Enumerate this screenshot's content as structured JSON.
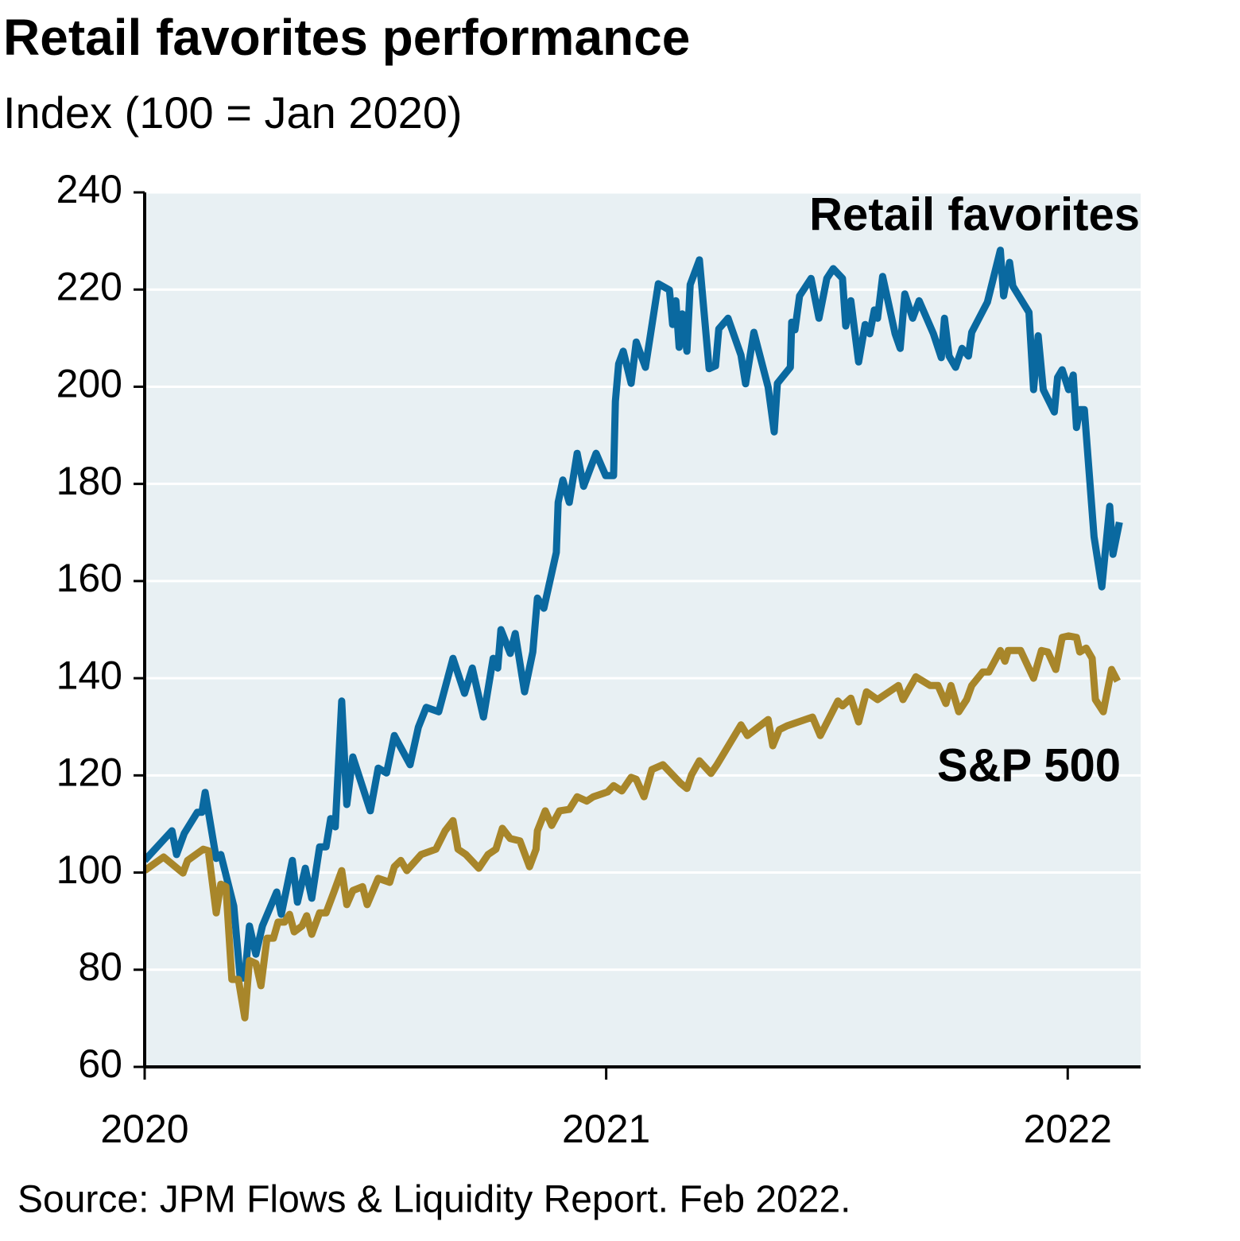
{
  "chart_data": {
    "type": "line",
    "title": "Retail favorites performance",
    "subtitle": "Index (100 = Jan 2020)",
    "source": "Source: JPM Flows & Liquidity Report. Feb 2022.",
    "annotations": [
      "Retail favorites",
      "S&P 500"
    ],
    "xlim": [
      2020,
      2022.158
    ],
    "xticks": [
      2020,
      2021,
      2022
    ],
    "ylim": [
      60,
      240
    ],
    "yticks": [
      60,
      80,
      100,
      120,
      140,
      160,
      180,
      200,
      220,
      240
    ],
    "grid": true,
    "background": "#e8f0f3",
    "series": [
      {
        "name": "Retail favorites",
        "color": "#0a69a0",
        "x": [
          2020.0,
          2020.059,
          2020.069,
          2020.086,
          2020.114,
          2020.124,
          2020.131,
          2020.155,
          2020.165,
          2020.193,
          2020.207,
          2020.217,
          2020.227,
          2020.241,
          2020.255,
          2020.286,
          2020.296,
          2020.32,
          2020.331,
          2020.348,
          2020.362,
          2020.379,
          2020.393,
          2020.403,
          2020.413,
          2020.427,
          2020.438,
          2020.451,
          2020.489,
          2020.506,
          2020.524,
          2020.541,
          2020.575,
          2020.593,
          2020.61,
          2020.637,
          2020.668,
          2020.693,
          2020.71,
          2020.734,
          2020.755,
          2020.765,
          2020.772,
          2020.792,
          2020.803,
          2020.823,
          2020.841,
          2020.851,
          2020.865,
          2020.892,
          2020.896,
          2020.906,
          2020.92,
          2020.937,
          2020.951,
          2020.978,
          2020.999,
          2021.016,
          2021.02,
          2021.027,
          2021.037,
          2021.054,
          2021.065,
          2021.085,
          2021.113,
          2021.137,
          2021.144,
          2021.151,
          2021.158,
          2021.165,
          2021.175,
          2021.182,
          2021.202,
          2021.223,
          2021.237,
          2021.244,
          2021.264,
          2021.292,
          2021.302,
          2021.32,
          2021.351,
          2021.364,
          2021.371,
          2021.399,
          2021.402,
          2021.409,
          2021.419,
          2021.444,
          2021.461,
          2021.478,
          2021.492,
          2021.512,
          2021.519,
          2021.53,
          2021.547,
          2021.561,
          2021.571,
          2021.581,
          2021.588,
          2021.599,
          2021.626,
          2021.637,
          2021.647,
          2021.664,
          2021.678,
          2021.709,
          2021.726,
          2021.733,
          2021.743,
          2021.757,
          2021.771,
          2021.785,
          2021.792,
          2021.826,
          2021.854,
          2021.861,
          2021.874,
          2021.881,
          2021.916,
          2021.926,
          2021.936,
          2021.947,
          2021.971,
          2021.978,
          2021.988,
          2022.002,
          2022.012,
          2022.019,
          2022.026,
          2022.036,
          2022.057,
          2022.074,
          2022.091,
          2022.098,
          2022.112
        ],
        "values": [
          102.5,
          108.6,
          103.7,
          108.1,
          112.4,
          112.4,
          116.5,
          102.9,
          103.7,
          93.1,
          78.3,
          78.3,
          89.0,
          83.2,
          89.0,
          96.0,
          91.4,
          102.5,
          93.9,
          100.9,
          94.7,
          105.3,
          105.3,
          111.1,
          109.4,
          135.3,
          114.0,
          123.8,
          112.7,
          121.5,
          120.5,
          128.2,
          122.2,
          129.9,
          134.0,
          133.1,
          144.1,
          136.9,
          142.1,
          132.0,
          144.1,
          142.1,
          150.0,
          145.1,
          149.2,
          137.2,
          145.4,
          156.5,
          154.4,
          165.9,
          176.2,
          180.8,
          176.2,
          186.3,
          179.5,
          186.3,
          181.7,
          181.7,
          197.0,
          204.7,
          207.3,
          200.7,
          209.2,
          204.0,
          221.2,
          219.9,
          212.8,
          217.7,
          208.1,
          215.0,
          207.3,
          221.0,
          226.1,
          203.7,
          204.3,
          211.9,
          214.1,
          206.5,
          200.6,
          211.2,
          199.9,
          190.7,
          200.7,
          204.0,
          213.3,
          211.7,
          218.7,
          222.3,
          214.1,
          222.3,
          224.3,
          222.3,
          212.5,
          217.7,
          205.1,
          212.8,
          210.9,
          215.8,
          214.1,
          222.7,
          210.9,
          207.9,
          219.1,
          214.1,
          217.7,
          210.9,
          206.0,
          214.1,
          206.3,
          204.0,
          207.9,
          206.3,
          211.2,
          217.4,
          228.1,
          218.7,
          225.6,
          220.7,
          215.3,
          199.4,
          210.5,
          199.4,
          194.8,
          201.9,
          203.5,
          199.4,
          202.4,
          191.6,
          195.3,
          195.3,
          169.1,
          158.8,
          175.4,
          165.5,
          172.1
        ]
      },
      {
        "name": "S&P 500",
        "color": "#a8862a",
        "x": [
          2020.0,
          2020.041,
          2020.083,
          2020.093,
          2020.127,
          2020.138,
          2020.155,
          2020.165,
          2020.176,
          2020.189,
          2020.203,
          2020.217,
          2020.227,
          2020.241,
          2020.252,
          2020.265,
          2020.279,
          2020.289,
          2020.303,
          2020.314,
          2020.324,
          2020.341,
          2020.351,
          2020.362,
          2020.379,
          2020.393,
          2020.41,
          2020.427,
          2020.438,
          2020.451,
          2020.472,
          2020.482,
          2020.506,
          2020.531,
          2020.541,
          2020.555,
          2020.568,
          2020.599,
          2020.631,
          2020.651,
          2020.668,
          2020.679,
          2020.696,
          2020.724,
          2020.744,
          2020.761,
          2020.775,
          2020.792,
          2020.813,
          2020.834,
          2020.848,
          2020.851,
          2020.868,
          2020.882,
          2020.899,
          2020.92,
          2020.937,
          2020.958,
          2020.972,
          2021.003,
          2021.016,
          2021.034,
          2021.054,
          2021.065,
          2021.082,
          2021.099,
          2021.123,
          2021.161,
          2021.175,
          2021.185,
          2021.202,
          2021.227,
          2021.24,
          2021.292,
          2021.306,
          2021.351,
          2021.361,
          2021.375,
          2021.392,
          2021.447,
          2021.464,
          2021.502,
          2021.512,
          2021.53,
          2021.547,
          2021.564,
          2021.588,
          2021.633,
          2021.643,
          2021.671,
          2021.702,
          2021.719,
          2021.736,
          2021.747,
          2021.764,
          2021.781,
          2021.792,
          2021.816,
          2021.829,
          2021.854,
          2021.864,
          2021.871,
          2021.898,
          2021.926,
          2021.943,
          2021.957,
          2021.974,
          2021.988,
          2022.002,
          2022.019,
          2022.026,
          2022.04,
          2022.053,
          2022.06,
          2022.077,
          2022.095,
          2022.108
        ],
        "values": [
          100.4,
          103.2,
          99.9,
          102.5,
          104.8,
          104.5,
          91.7,
          97.6,
          97.1,
          78.0,
          78.0,
          70.1,
          81.9,
          81.3,
          76.7,
          86.5,
          86.5,
          89.8,
          89.8,
          91.4,
          87.8,
          89.0,
          91.1,
          87.3,
          91.7,
          91.7,
          96.0,
          100.4,
          93.4,
          96.3,
          97.1,
          93.4,
          98.8,
          98.0,
          101.2,
          102.5,
          100.4,
          103.7,
          104.8,
          108.6,
          110.7,
          104.8,
          103.7,
          100.9,
          103.7,
          104.8,
          109.1,
          107.0,
          106.5,
          101.2,
          104.8,
          108.6,
          112.7,
          109.7,
          112.7,
          113.0,
          115.6,
          114.7,
          115.6,
          116.6,
          117.9,
          116.8,
          119.6,
          119.2,
          115.6,
          121.2,
          122.2,
          118.4,
          117.3,
          120.1,
          123.0,
          120.4,
          122.2,
          130.4,
          128.2,
          131.5,
          126.1,
          129.4,
          130.2,
          132.0,
          128.2,
          135.3,
          134.3,
          135.9,
          131.0,
          137.2,
          135.6,
          138.5,
          135.6,
          140.3,
          138.5,
          138.5,
          134.8,
          138.5,
          133.1,
          135.6,
          138.5,
          141.3,
          141.3,
          145.7,
          143.5,
          145.7,
          145.7,
          140.0,
          145.7,
          145.4,
          141.8,
          148.4,
          148.7,
          148.4,
          145.4,
          146.2,
          144.1,
          135.6,
          133.1,
          141.8,
          139.4
        ]
      }
    ]
  }
}
